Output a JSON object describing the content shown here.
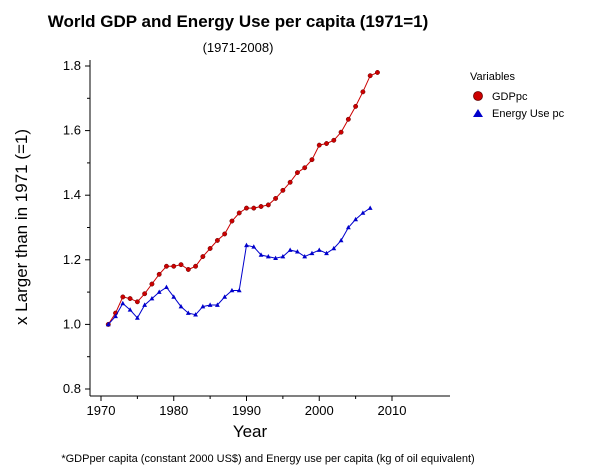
{
  "chart_data": {
    "type": "line",
    "title": "World GDP and Energy Use per capita (1971=1)",
    "subtitle": "(1971-2008)",
    "xlabel": "Year",
    "ylabel": "x Larger than in 1971 (=1)",
    "footnote": "*GDPper capita (constant 2000 US$) and Energy use per capita (kg of oil equivalent)",
    "xlim": [
      1970,
      2010
    ],
    "ylim": [
      0.8,
      1.8
    ],
    "xticks": [
      "1970",
      "1980",
      "1990",
      "2000",
      "2010"
    ],
    "yticks": [
      "0.8",
      "1.0",
      "1.2",
      "1.4",
      "1.6",
      "1.8"
    ],
    "grid": false,
    "legend": {
      "title": "Variables",
      "position": "right"
    },
    "series": [
      {
        "name": "GDPpc",
        "color": "#cc0000",
        "marker": "circle",
        "x": [
          1971,
          1972,
          1973,
          1974,
          1975,
          1976,
          1977,
          1978,
          1979,
          1980,
          1981,
          1982,
          1983,
          1984,
          1985,
          1986,
          1987,
          1988,
          1989,
          1990,
          1991,
          1992,
          1993,
          1994,
          1995,
          1996,
          1997,
          1998,
          1999,
          2000,
          2001,
          2002,
          2003,
          2004,
          2005,
          2006,
          2007,
          2008
        ],
        "values": [
          1.0,
          1.035,
          1.085,
          1.08,
          1.07,
          1.095,
          1.125,
          1.155,
          1.18,
          1.18,
          1.185,
          1.17,
          1.18,
          1.21,
          1.235,
          1.26,
          1.28,
          1.32,
          1.345,
          1.36,
          1.36,
          1.365,
          1.37,
          1.39,
          1.415,
          1.44,
          1.47,
          1.485,
          1.51,
          1.555,
          1.56,
          1.57,
          1.595,
          1.635,
          1.675,
          1.72,
          1.77,
          1.78
        ]
      },
      {
        "name": "Energy Use pc",
        "color": "#0000cc",
        "marker": "triangle",
        "x": [
          1971,
          1972,
          1973,
          1974,
          1975,
          1976,
          1977,
          1978,
          1979,
          1980,
          1981,
          1982,
          1983,
          1984,
          1985,
          1986,
          1987,
          1988,
          1989,
          1990,
          1991,
          1992,
          1993,
          1994,
          1995,
          1996,
          1997,
          1998,
          1999,
          2000,
          2001,
          2002,
          2003,
          2004,
          2005,
          2006,
          2007
        ],
        "values": [
          1.0,
          1.025,
          1.065,
          1.045,
          1.02,
          1.06,
          1.08,
          1.1,
          1.115,
          1.085,
          1.055,
          1.035,
          1.03,
          1.055,
          1.06,
          1.06,
          1.085,
          1.105,
          1.105,
          1.245,
          1.24,
          1.215,
          1.21,
          1.205,
          1.21,
          1.23,
          1.225,
          1.21,
          1.22,
          1.23,
          1.22,
          1.235,
          1.26,
          1.3,
          1.325,
          1.345,
          1.36
        ]
      }
    ]
  }
}
